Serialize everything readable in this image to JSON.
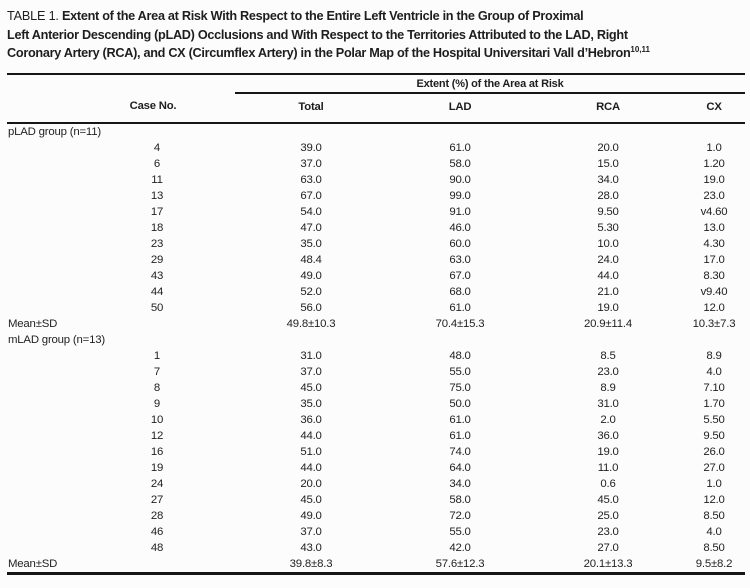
{
  "title": {
    "label": "TABLE 1.",
    "line1": "Extent of the Area at Risk With Respect to the Entire Left Ventricle in the Group of Proximal",
    "line2": "Left Anterior Descending (pLAD) Occlusions and With Respect to the Territories Attributed to the LAD, Right",
    "line3": "Coronary Artery (RCA), and CX (Circumflex Artery) in the Polar Map of the Hospital Universitari Vall d’Hebron",
    "reference": "10,11"
  },
  "table": {
    "spanner_header": "Extent (%) of the Area at Risk",
    "columns": [
      "Case No.",
      "Total",
      "LAD",
      "RCA",
      "CX"
    ],
    "groups": [
      {
        "label": "pLAD group (n=11)",
        "rows": [
          {
            "case": "4",
            "total": "39.0",
            "lad": "61.0",
            "rca": "20.0",
            "cx": "1.0"
          },
          {
            "case": "6",
            "total": "37.0",
            "lad": "58.0",
            "rca": "15.0",
            "cx": "1.20"
          },
          {
            "case": "11",
            "total": "63.0",
            "lad": "90.0",
            "rca": "34.0",
            "cx": "19.0"
          },
          {
            "case": "13",
            "total": "67.0",
            "lad": "99.0",
            "rca": "28.0",
            "cx": "23.0"
          },
          {
            "case": "17",
            "total": "54.0",
            "lad": "91.0",
            "rca": "9.50",
            "cx": "v4.60"
          },
          {
            "case": "18",
            "total": "47.0",
            "lad": "46.0",
            "rca": "5.30",
            "cx": "13.0"
          },
          {
            "case": "23",
            "total": "35.0",
            "lad": "60.0",
            "rca": "10.0",
            "cx": "4.30"
          },
          {
            "case": "29",
            "total": "48.4",
            "lad": "63.0",
            "rca": "24.0",
            "cx": "17.0"
          },
          {
            "case": "43",
            "total": "49.0",
            "lad": "67.0",
            "rca": "44.0",
            "cx": "8.30"
          },
          {
            "case": "44",
            "total": "52.0",
            "lad": "68.0",
            "rca": "21.0",
            "cx": "v9.40"
          },
          {
            "case": "50",
            "total": "56.0",
            "lad": "61.0",
            "rca": "19.0",
            "cx": "12.0"
          }
        ],
        "summary": {
          "label": "Mean±SD",
          "total": "49.8±10.3",
          "lad": "70.4±15.3",
          "rca": "20.9±11.4",
          "cx": "10.3±7.3"
        }
      },
      {
        "label": "mLAD group (n=13)",
        "rows": [
          {
            "case": "1",
            "total": "31.0",
            "lad": "48.0",
            "rca": "8.5",
            "cx": "8.9"
          },
          {
            "case": "7",
            "total": "37.0",
            "lad": "55.0",
            "rca": "23.0",
            "cx": "4.0"
          },
          {
            "case": "8",
            "total": "45.0",
            "lad": "75.0",
            "rca": "8.9",
            "cx": "7.10"
          },
          {
            "case": "9",
            "total": "35.0",
            "lad": "50.0",
            "rca": "31.0",
            "cx": "1.70"
          },
          {
            "case": "10",
            "total": "36.0",
            "lad": "61.0",
            "rca": "2.0",
            "cx": "5.50"
          },
          {
            "case": "12",
            "total": "44.0",
            "lad": "61.0",
            "rca": "36.0",
            "cx": "9.50"
          },
          {
            "case": "16",
            "total": "51.0",
            "lad": "74.0",
            "rca": "19.0",
            "cx": "26.0"
          },
          {
            "case": "19",
            "total": "44.0",
            "lad": "64.0",
            "rca": "11.0",
            "cx": "27.0"
          },
          {
            "case": "24",
            "total": "20.0",
            "lad": "34.0",
            "rca": "0.6",
            "cx": "1.0"
          },
          {
            "case": "27",
            "total": "45.0",
            "lad": "58.0",
            "rca": "45.0",
            "cx": "12.0"
          },
          {
            "case": "28",
            "total": "49.0",
            "lad": "72.0",
            "rca": "25.0",
            "cx": "8.50"
          },
          {
            "case": "46",
            "total": "37.0",
            "lad": "55.0",
            "rca": "23.0",
            "cx": "4.0"
          },
          {
            "case": "48",
            "total": "43.0",
            "lad": "42.0",
            "rca": "27.0",
            "cx": "8.50"
          }
        ],
        "summary": {
          "label": "Mean±SD",
          "total": "39.8±8.3",
          "lad": "57.6±12.3",
          "rca": "20.1±13.3",
          "cx": "9.5±8.2"
        }
      }
    ]
  }
}
